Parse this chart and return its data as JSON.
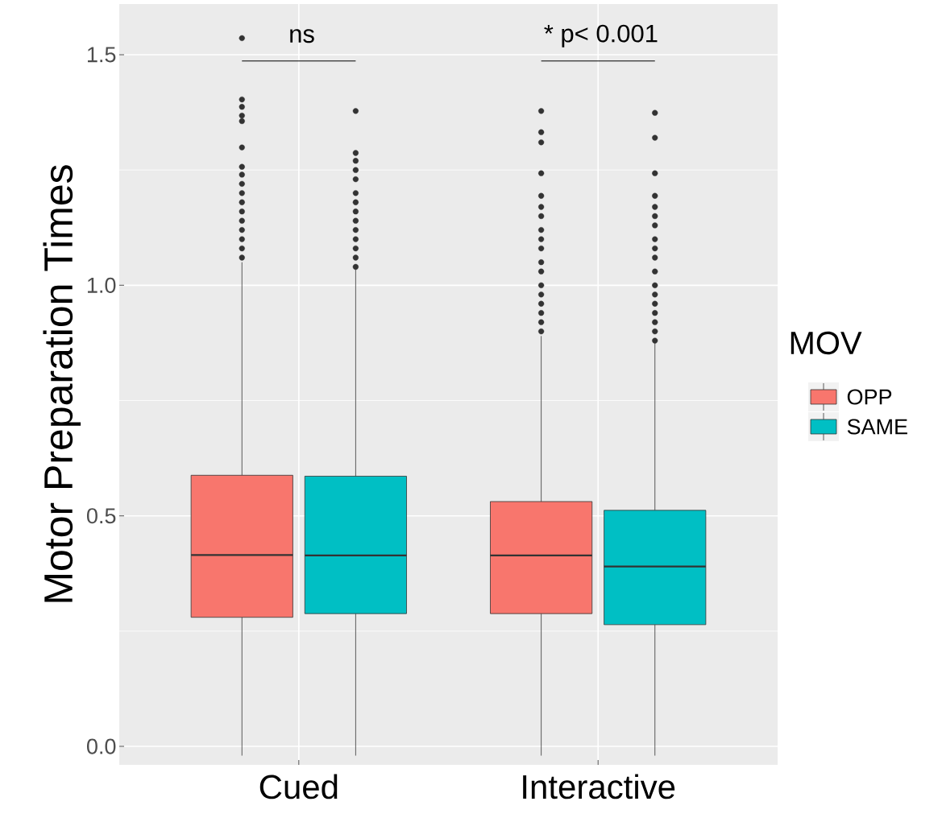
{
  "chart_data": {
    "type": "box",
    "ylabel": "Motor Preparation Times",
    "legend_title": "MOV",
    "categories": [
      "Cued",
      "Interactive"
    ],
    "series": [
      {
        "name": "OPP",
        "color": "#f8766d",
        "boxes": [
          {
            "low": -0.02,
            "q1": 0.28,
            "median": 0.415,
            "q3": 0.588,
            "high": 1.05,
            "outliers": [
              1.536,
              1.403,
              1.387,
              1.368,
              1.356,
              1.299,
              1.257,
              1.24,
              1.22,
              1.2,
              1.18,
              1.16,
              1.14,
              1.12,
              1.1,
              1.08,
              1.06
            ]
          },
          {
            "low": -0.02,
            "q1": 0.288,
            "median": 0.414,
            "q3": 0.531,
            "high": 0.89,
            "outliers": [
              1.378,
              1.332,
              1.31,
              1.243,
              1.194,
              1.17,
              1.15,
              1.12,
              1.1,
              1.08,
              1.05,
              1.03,
              1.0,
              0.98,
              0.96,
              0.94,
              0.92,
              0.9
            ]
          }
        ]
      },
      {
        "name": "SAME",
        "color": "#00bfc4",
        "boxes": [
          {
            "low": -0.02,
            "q1": 0.288,
            "median": 0.414,
            "q3": 0.586,
            "high": 1.04,
            "outliers": [
              1.378,
              1.287,
              1.27,
              1.25,
              1.23,
              1.2,
              1.18,
              1.16,
              1.14,
              1.12,
              1.1,
              1.08,
              1.06,
              1.04
            ]
          },
          {
            "low": -0.02,
            "q1": 0.264,
            "median": 0.39,
            "q3": 0.512,
            "high": 0.875,
            "outliers": [
              1.374,
              1.32,
              1.243,
              1.194,
              1.17,
              1.15,
              1.13,
              1.1,
              1.08,
              1.06,
              1.03,
              1.0,
              0.98,
              0.96,
              0.94,
              0.92,
              0.9,
              0.88
            ]
          }
        ]
      }
    ],
    "ylim": [
      -0.04,
      1.61
    ],
    "yticks": [
      {
        "value": 0,
        "label": "0.0"
      },
      {
        "value": 0.25,
        "label": null
      },
      {
        "value": 0.5,
        "label": "0.5"
      },
      {
        "value": 0.75,
        "label": null
      },
      {
        "value": 1,
        "label": "1.0"
      },
      {
        "value": 1.25,
        "label": null
      },
      {
        "value": 1.5,
        "label": "1.5"
      }
    ],
    "grid": true,
    "legend": "right",
    "annotations": [
      "ns",
      "* p< 0.001"
    ]
  }
}
